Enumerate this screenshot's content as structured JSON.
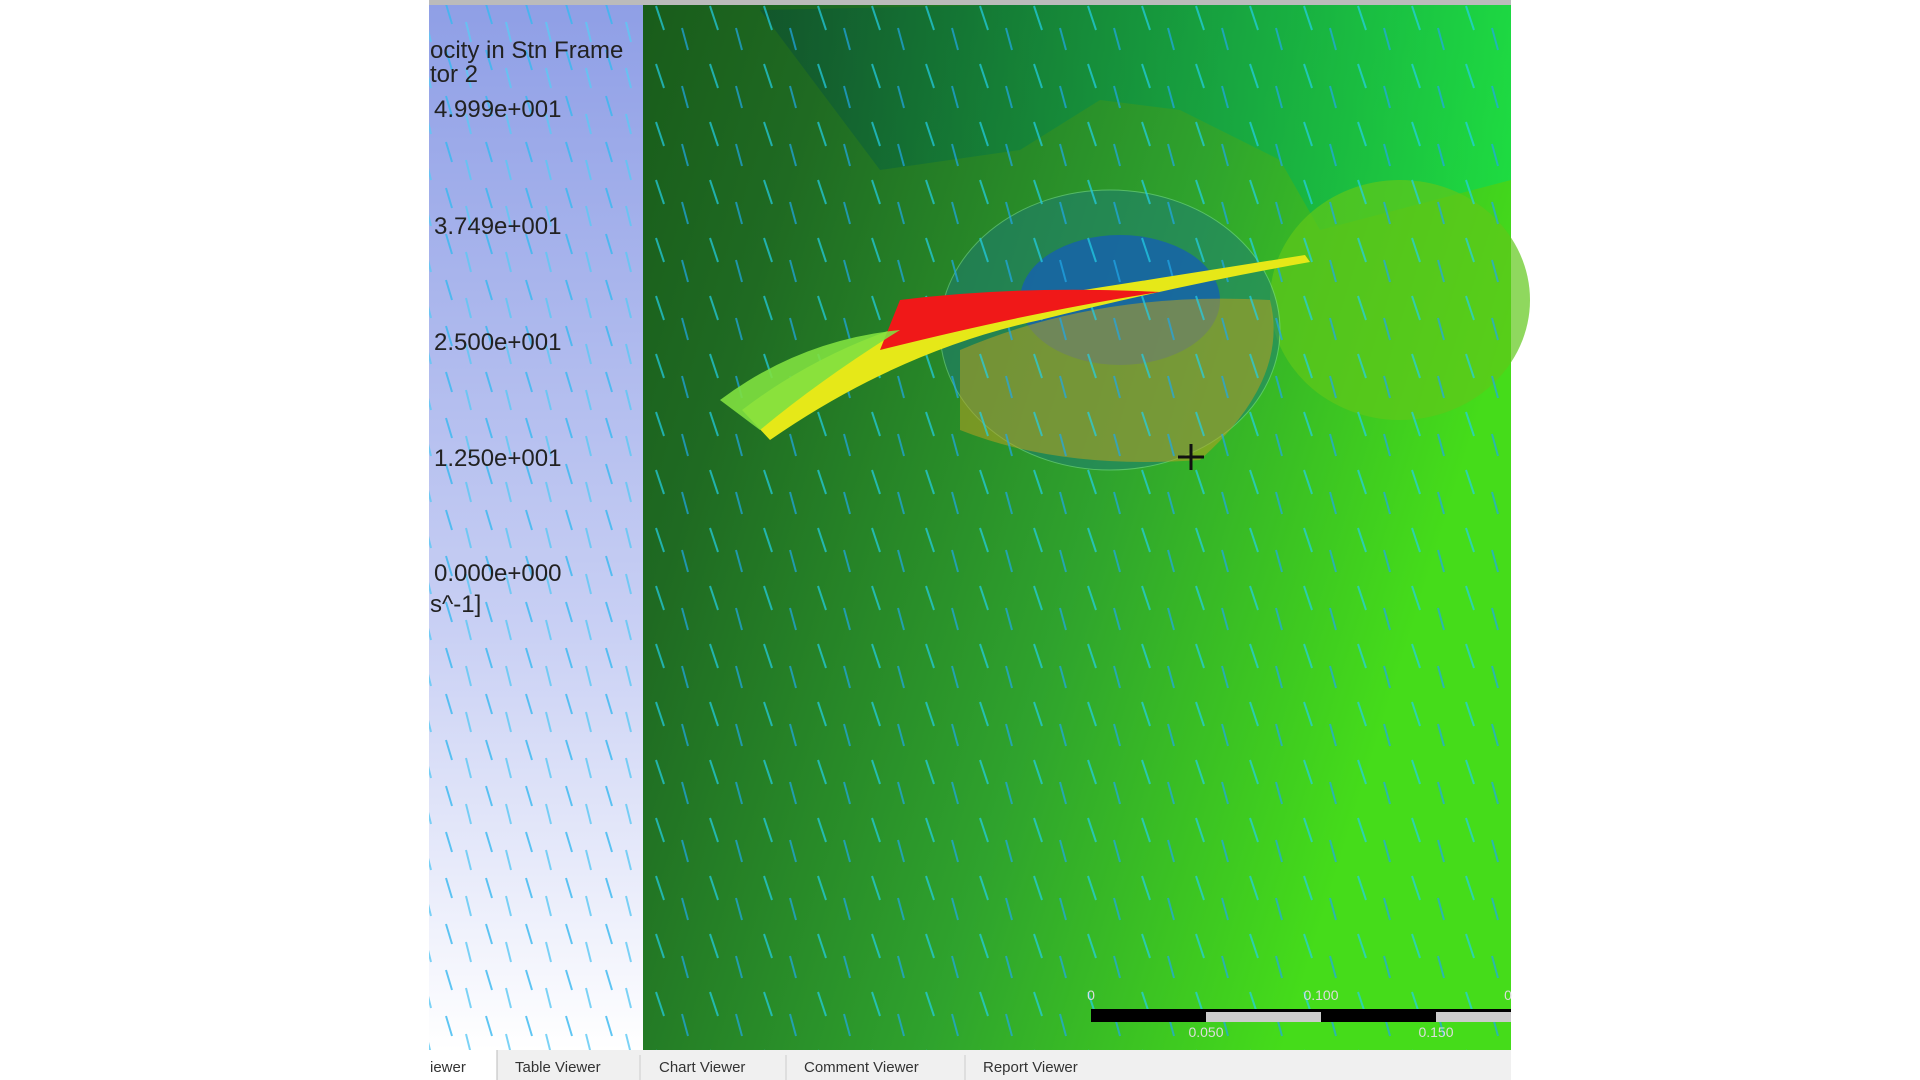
{
  "legend": {
    "title_lines": [
      "ocity in Stn Frame",
      "tor 2"
    ],
    "labels": [
      "4.999e+001",
      "3.749e+001",
      "2.500e+001",
      "1.250e+001",
      "0.000e+000"
    ],
    "unit": "s^-1]"
  },
  "scale_bar": {
    "top_labels": [
      "0",
      "0.100",
      "0"
    ],
    "bottom_labels": [
      "0.050",
      "0.150"
    ]
  },
  "tabs": [
    "iewer",
    "Table Viewer",
    "Chart Viewer",
    "Comment Viewer",
    "Report Viewer"
  ]
}
